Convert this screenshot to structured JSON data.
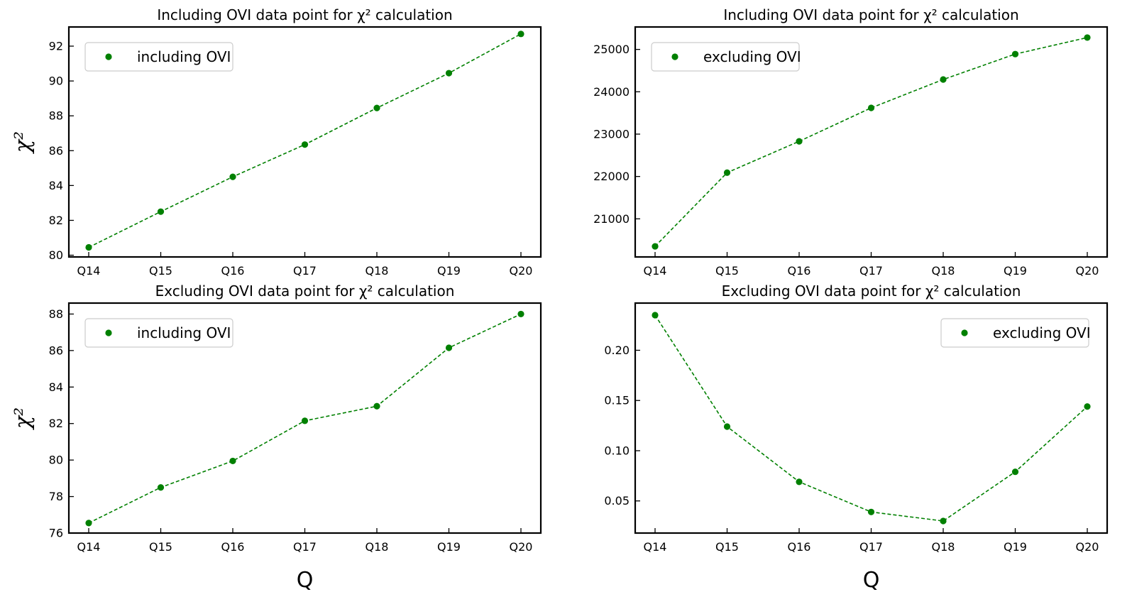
{
  "figure": {
    "marker_color": "#008000",
    "line_color": "#008000",
    "xlabel": "Q",
    "ylabel": "χ²"
  },
  "chart_data": [
    {
      "type": "line",
      "title": "Including OVI data point for χ² calculation",
      "categories": [
        "Q14",
        "Q15",
        "Q16",
        "Q17",
        "Q18",
        "Q19",
        "Q20"
      ],
      "series": [
        {
          "name": "including OVI",
          "values": [
            80.45,
            82.5,
            84.5,
            86.35,
            88.45,
            90.45,
            92.7
          ]
        }
      ],
      "ylim": [
        79.9,
        93.1
      ],
      "yticks": [
        80,
        82,
        84,
        86,
        88,
        90,
        92
      ],
      "ylabel": "χ²",
      "xlabel": "",
      "legend": "upper left",
      "grid": false
    },
    {
      "type": "line",
      "title": "Including OVI data point for χ² calculation",
      "categories": [
        "Q14",
        "Q15",
        "Q16",
        "Q17",
        "Q18",
        "Q19",
        "Q20"
      ],
      "series": [
        {
          "name": "excluding OVI",
          "values": [
            20350,
            22090,
            22830,
            23620,
            24290,
            24890,
            25280
          ]
        }
      ],
      "ylim": [
        20100,
        25530
      ],
      "yticks": [
        21000,
        22000,
        23000,
        24000,
        25000
      ],
      "ylabel": "",
      "xlabel": "",
      "legend": "upper left",
      "grid": false
    },
    {
      "type": "line",
      "title": "Excluding OVI data point for χ² calculation",
      "categories": [
        "Q14",
        "Q15",
        "Q16",
        "Q17",
        "Q18",
        "Q19",
        "Q20"
      ],
      "series": [
        {
          "name": "including OVI",
          "values": [
            76.55,
            78.5,
            79.95,
            82.15,
            82.95,
            86.15,
            88.0
          ]
        }
      ],
      "ylim": [
        76.0,
        88.6
      ],
      "yticks": [
        76,
        78,
        80,
        82,
        84,
        86,
        88
      ],
      "ylabel": "χ²",
      "xlabel": "Q",
      "legend": "upper left",
      "grid": false
    },
    {
      "type": "line",
      "title": "Excluding OVI data point for χ² calculation",
      "categories": [
        "Q14",
        "Q15",
        "Q16",
        "Q17",
        "Q18",
        "Q19",
        "Q20"
      ],
      "series": [
        {
          "name": "excluding OVI",
          "values": [
            0.235,
            0.124,
            0.069,
            0.039,
            0.03,
            0.079,
            0.144
          ]
        }
      ],
      "ylim": [
        0.018,
        0.247
      ],
      "yticks": [
        0.05,
        0.1,
        0.15,
        0.2
      ],
      "ylabel": "",
      "xlabel": "Q",
      "legend": "upper right",
      "grid": false
    }
  ]
}
